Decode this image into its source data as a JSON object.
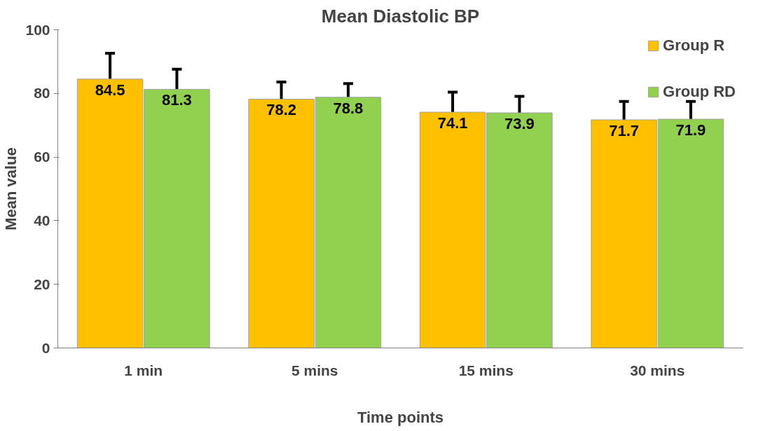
{
  "chart_data": {
    "type": "bar",
    "title": "Mean Diastolic BP",
    "xlabel": "Time points",
    "ylabel": "Mean value",
    "categories": [
      "1 min",
      "5 mins",
      "15 mins",
      "30 mins"
    ],
    "series": [
      {
        "name": "Group R",
        "color": "#ffc000",
        "values": [
          84.5,
          78.2,
          74.1,
          71.7
        ],
        "errors": [
          [
            84.5,
            92.6
          ],
          [
            78.2,
            83.6
          ],
          [
            74.1,
            80.4
          ],
          [
            71.7,
            77.5
          ]
        ]
      },
      {
        "name": "Group RD",
        "color": "#92d050",
        "values": [
          81.3,
          78.8,
          73.9,
          71.9
        ],
        "errors": [
          [
            81.3,
            87.6
          ],
          [
            78.8,
            83.1
          ],
          [
            73.9,
            79.1
          ],
          [
            71.9,
            77.5
          ]
        ]
      }
    ],
    "ylim": [
      0,
      100
    ],
    "yticks": [
      0,
      20,
      40,
      60,
      80,
      100
    ],
    "grid": false,
    "legend": "top right",
    "data_labels": true
  }
}
